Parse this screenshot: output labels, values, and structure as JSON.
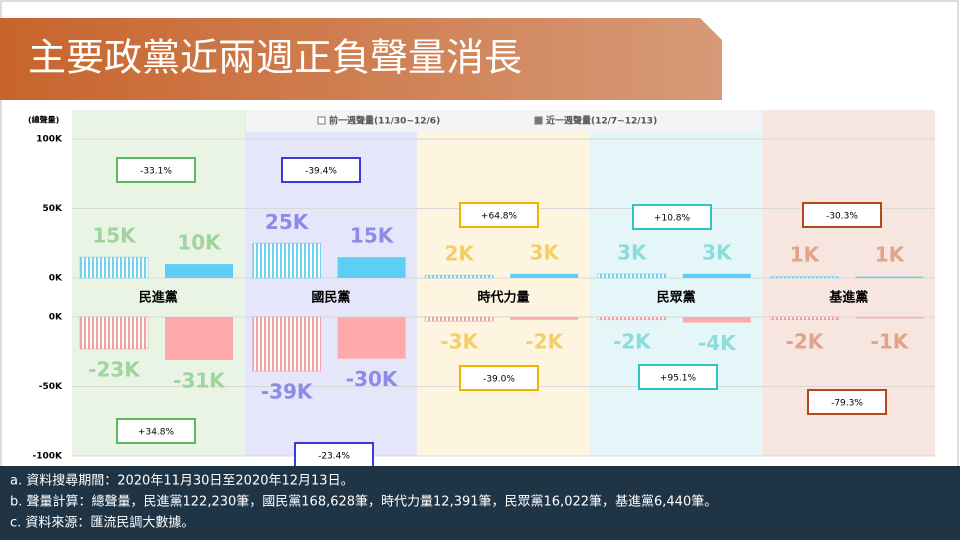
{
  "title": "主要政黨近兩週正負聲量消長",
  "chart_data": [
    {
      "type": "bar",
      "y_label": "(總聲量)",
      "categories": [
        "民進黨",
        "國民黨",
        "時代力量",
        "民眾黨",
        "基進黨"
      ],
      "category_colors": [
        "#5cb85c",
        "#3a3adb",
        "#f0b400",
        "#2ec4c4",
        "#b5461b"
      ],
      "panel_colors": [
        "#eaf4e4",
        "#e6e6fb",
        "#fdf5e0",
        "#e4f6f8",
        "#f7e6e0"
      ],
      "label_colors": [
        "#9fd39f",
        "#8c8ce8",
        "#f3cf6c",
        "#8ddcdc",
        "#e0a488"
      ],
      "ylim": [
        0,
        100000
      ],
      "yticks": [
        {
          "value": 0,
          "label": "0K"
        },
        {
          "value": 50000,
          "label": "50K"
        },
        {
          "value": 100000,
          "label": "100K"
        }
      ],
      "grid": true,
      "series": [
        {
          "name": "前一週聲量(11/30~12/6)",
          "color": "#6fd2f0",
          "hatched": true,
          "values": [
            15000,
            25000,
            2000,
            3000,
            1000
          ],
          "value_labels": [
            "15K",
            "25K",
            "2K",
            "3K",
            "1K"
          ]
        },
        {
          "name": "近一週聲量(12/7~12/13)",
          "color": "#5dcff5",
          "hatched": false,
          "values": [
            10000,
            15000,
            3000,
            3000,
            1000
          ],
          "value_labels": [
            "10K",
            "15K",
            "3K",
            "3K",
            "1K"
          ]
        }
      ],
      "change_labels": [
        "-33.1%",
        "-39.4%",
        "+64.8%",
        "+10.8%",
        "-30.3%"
      ]
    },
    {
      "type": "bar",
      "ylim": [
        -100000,
        0
      ],
      "yticks": [
        {
          "value": 0,
          "label": "0K"
        },
        {
          "value": -50000,
          "label": "-50K"
        },
        {
          "value": -100000,
          "label": "-100K"
        }
      ],
      "grid": true,
      "series": [
        {
          "color": "#f4a0a0",
          "hatched": true,
          "values": [
            -23000,
            -39000,
            -3000,
            -2000,
            -2000
          ],
          "value_labels": [
            "-23K",
            "-39K",
            "-3K",
            "-2K",
            "-2K"
          ]
        },
        {
          "color": "#ffaaaa",
          "hatched": false,
          "values": [
            -31000,
            -30000,
            -2000,
            -4000,
            -1000
          ],
          "value_labels": [
            "-31K",
            "-30K",
            "-2K",
            "-4K",
            "-1K"
          ]
        }
      ],
      "change_labels": [
        "+34.8%",
        "-23.4%",
        "-39.0%",
        "+95.1%",
        "-79.3%"
      ]
    }
  ],
  "notes": [
    "a. 資料搜尋期間：2020年11月30日至2020年12月13日。",
    "b. 聲量計算：總聲量，民進黨122,230筆，國民黨168,628筆，時代力量12,391筆，民眾黨16,022筆，基進黨6,440筆。",
    "c. 資料來源：匯流民調大數據。"
  ]
}
